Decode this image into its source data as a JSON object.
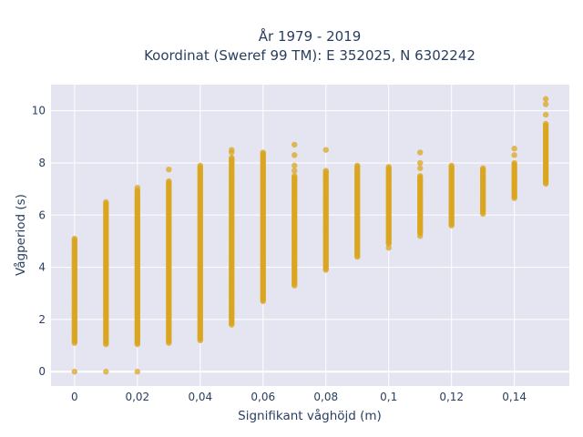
{
  "chart_data": {
    "type": "scatter",
    "title_line1": "År 1979 - 2019",
    "title_line2": "Koordinat (Sweref 99 TM): E 352025, N 6302242",
    "xlabel": "Signifikant våghöjd (m)",
    "ylabel": "Vågperiod (s)",
    "xlim": [
      -0.0075,
      0.1575
    ],
    "ylim": [
      -0.55,
      11.0
    ],
    "x_ticks": [
      0,
      0.02,
      0.04,
      0.06,
      0.08,
      0.1,
      0.12,
      0.14
    ],
    "x_tick_labels": [
      "0",
      "0,02",
      "0,04",
      "0,06",
      "0,08",
      "0,1",
      "0,12",
      "0,14"
    ],
    "y_ticks": [
      0,
      2,
      4,
      6,
      8,
      10
    ],
    "y_tick_labels": [
      "0",
      "2",
      "4",
      "6",
      "8",
      "10"
    ],
    "grid": true,
    "plot_background": "#e5e5f2",
    "marker_color": "#DAA520",
    "columns": [
      {
        "x": 0.0,
        "dense_range": [
          1.1,
          5.1
        ],
        "outliers": [
          0.0
        ]
      },
      {
        "x": 0.01,
        "dense_range": [
          1.05,
          6.5
        ],
        "outliers": [
          0.0
        ]
      },
      {
        "x": 0.02,
        "dense_range": [
          1.05,
          6.95
        ],
        "outliers": [
          0.0,
          7.05
        ]
      },
      {
        "x": 0.03,
        "dense_range": [
          1.1,
          7.3
        ],
        "outliers": [
          7.75
        ]
      },
      {
        "x": 0.04,
        "dense_range": [
          1.2,
          7.9
        ],
        "outliers": []
      },
      {
        "x": 0.05,
        "dense_range": [
          1.8,
          8.2
        ],
        "outliers": [
          8.4,
          8.5
        ]
      },
      {
        "x": 0.06,
        "dense_range": [
          2.7,
          8.4
        ],
        "outliers": []
      },
      {
        "x": 0.07,
        "dense_range": [
          3.3,
          7.5
        ],
        "outliers": [
          7.7,
          7.9,
          8.3,
          8.7
        ]
      },
      {
        "x": 0.08,
        "dense_range": [
          3.9,
          7.7
        ],
        "outliers": [
          8.5
        ]
      },
      {
        "x": 0.09,
        "dense_range": [
          4.4,
          7.9
        ],
        "outliers": []
      },
      {
        "x": 0.1,
        "dense_range": [
          4.9,
          7.85
        ],
        "outliers": [
          4.75
        ]
      },
      {
        "x": 0.11,
        "dense_range": [
          5.3,
          7.5
        ],
        "outliers": [
          5.2,
          7.8,
          8.0,
          8.4
        ]
      },
      {
        "x": 0.12,
        "dense_range": [
          5.6,
          7.9
        ],
        "outliers": []
      },
      {
        "x": 0.13,
        "dense_range": [
          6.05,
          7.8
        ],
        "outliers": []
      },
      {
        "x": 0.14,
        "dense_range": [
          6.65,
          8.0
        ],
        "outliers": [
          8.3,
          8.55
        ]
      },
      {
        "x": 0.15,
        "dense_range": [
          7.2,
          9.5
        ],
        "outliers": [
          9.85,
          10.25,
          10.45
        ]
      }
    ]
  }
}
